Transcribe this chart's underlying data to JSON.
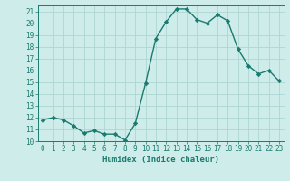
{
  "x": [
    0,
    1,
    2,
    3,
    4,
    5,
    6,
    7,
    8,
    9,
    10,
    11,
    12,
    13,
    14,
    15,
    16,
    17,
    18,
    19,
    20,
    21,
    22,
    23
  ],
  "y": [
    11.8,
    12.0,
    11.8,
    11.3,
    10.7,
    10.9,
    10.6,
    10.6,
    10.1,
    11.5,
    14.9,
    18.7,
    20.1,
    21.2,
    21.2,
    20.3,
    20.0,
    20.7,
    20.2,
    17.8,
    16.4,
    15.7,
    16.0,
    15.1
  ],
  "line_color": "#1a7a6e",
  "marker": "D",
  "marker_size": 2.2,
  "bg_color": "#cdecea",
  "grid_major_color": "#aed6d3",
  "grid_minor_color": "#c4e6e4",
  "xlabel": "Humidex (Indice chaleur)",
  "ylim": [
    10,
    21.5
  ],
  "xlim": [
    -0.5,
    23.5
  ],
  "yticks": [
    10,
    11,
    12,
    13,
    14,
    15,
    16,
    17,
    18,
    19,
    20,
    21
  ],
  "xticks": [
    0,
    1,
    2,
    3,
    4,
    5,
    6,
    7,
    8,
    9,
    10,
    11,
    12,
    13,
    14,
    15,
    16,
    17,
    18,
    19,
    20,
    21,
    22,
    23
  ],
  "tick_color": "#1a7a6e",
  "label_fontsize": 6.5,
  "tick_fontsize": 5.5,
  "linewidth": 1.0
}
